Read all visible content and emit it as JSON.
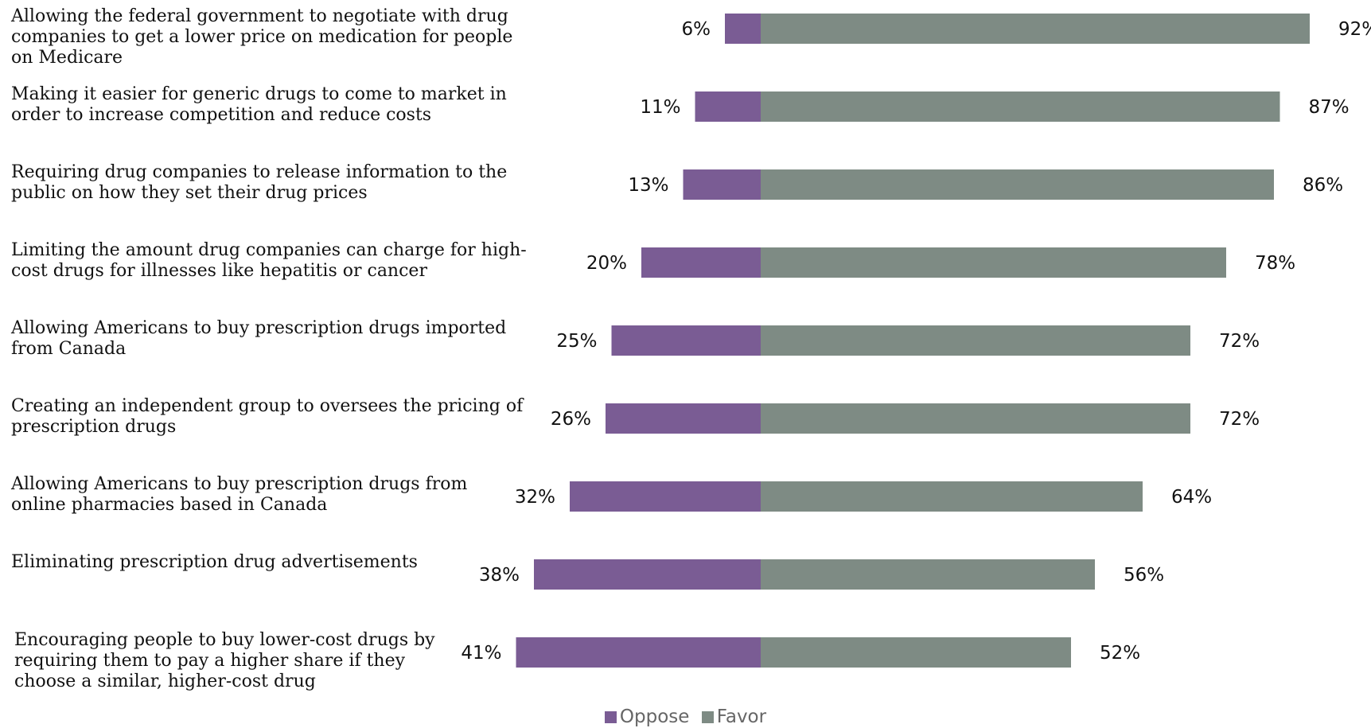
{
  "chart_data": {
    "type": "bar",
    "orientation": "horizontal-diverging",
    "categories": [
      [
        "Allowing the federal government to negotiate with drug",
        "companies to get a lower price on medication for people",
        "on Medicare"
      ],
      [
        "Making it easier for generic drugs to come to market in",
        "order to increase competition and reduce costs"
      ],
      [
        "Requiring drug companies to release information to the",
        "public on how they set their drug prices"
      ],
      [
        "Limiting the amount drug companies can charge for high-",
        "cost drugs for illnesses like hepatitis or cancer"
      ],
      [
        "Allowing Americans to buy prescription drugs imported",
        "from Canada"
      ],
      [
        "Creating an independent group to oversees the pricing of",
        "prescription drugs"
      ],
      [
        "Allowing Americans to buy prescription drugs from",
        "online pharmacies based in Canada"
      ],
      [
        "Eliminating prescription drug advertisements"
      ],
      [
        "Encouraging people to buy lower-cost drugs by",
        "requiring them to pay a higher share if they",
        "choose a similar, higher-cost drug"
      ]
    ],
    "series": [
      {
        "name": "Oppose",
        "color": "#7a5c94",
        "values": [
          6,
          11,
          13,
          20,
          25,
          26,
          32,
          38,
          41
        ],
        "labels": [
          "6%",
          "11%",
          "13%",
          "20%",
          "25%",
          "26%",
          "32%",
          "38%",
          "41%"
        ]
      },
      {
        "name": "Favor",
        "color": "#7e8b84",
        "values": [
          92,
          87,
          86,
          78,
          72,
          72,
          64,
          56,
          52
        ],
        "labels": [
          "92%",
          "87%",
          "86%",
          "78%",
          "72%",
          "72%",
          "64%",
          "56%",
          "52%"
        ]
      }
    ],
    "legend_position": "bottom-center",
    "grid": false
  }
}
